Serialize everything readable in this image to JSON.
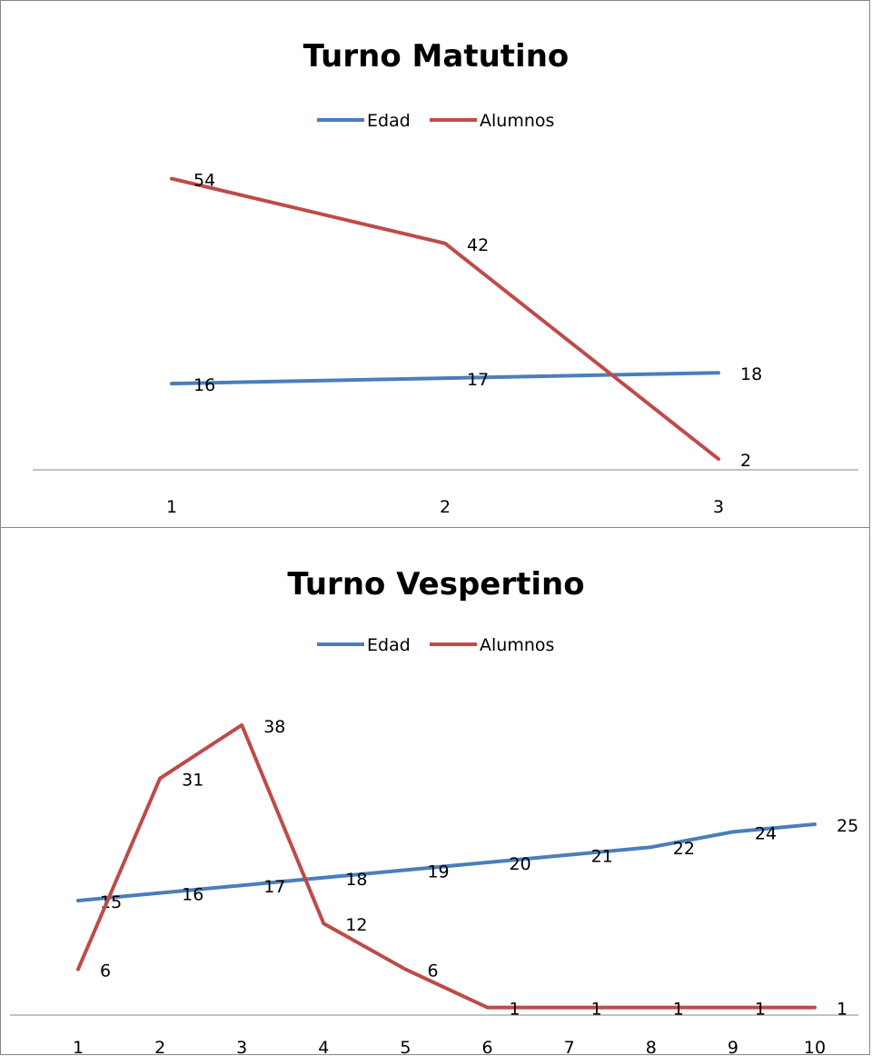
{
  "colors": {
    "edad": "#4a7ebb",
    "alumnos": "#be4b48",
    "axis": "#878787"
  },
  "chart_data": [
    {
      "type": "line",
      "title": "Turno Matutino",
      "categories": [
        "1",
        "2",
        "3"
      ],
      "series": [
        {
          "name": "Edad",
          "values": [
            16,
            17,
            18
          ]
        },
        {
          "name": "Alumnos",
          "values": [
            54,
            42,
            2
          ]
        }
      ],
      "ylim": [
        0,
        60
      ],
      "grid": false,
      "legend": "top"
    },
    {
      "type": "line",
      "title": "Turno Vespertino",
      "categories": [
        "1",
        "2",
        "3",
        "4",
        "5",
        "6",
        "7",
        "8",
        "9",
        "10"
      ],
      "series": [
        {
          "name": "Edad",
          "values": [
            15,
            16,
            17,
            18,
            19,
            20,
            21,
            22,
            24,
            25
          ]
        },
        {
          "name": "Alumnos",
          "values": [
            6,
            31,
            38,
            12,
            6,
            1,
            1,
            1,
            1,
            1
          ]
        }
      ],
      "ylim": [
        0,
        40
      ],
      "grid": false,
      "legend": "top"
    }
  ]
}
